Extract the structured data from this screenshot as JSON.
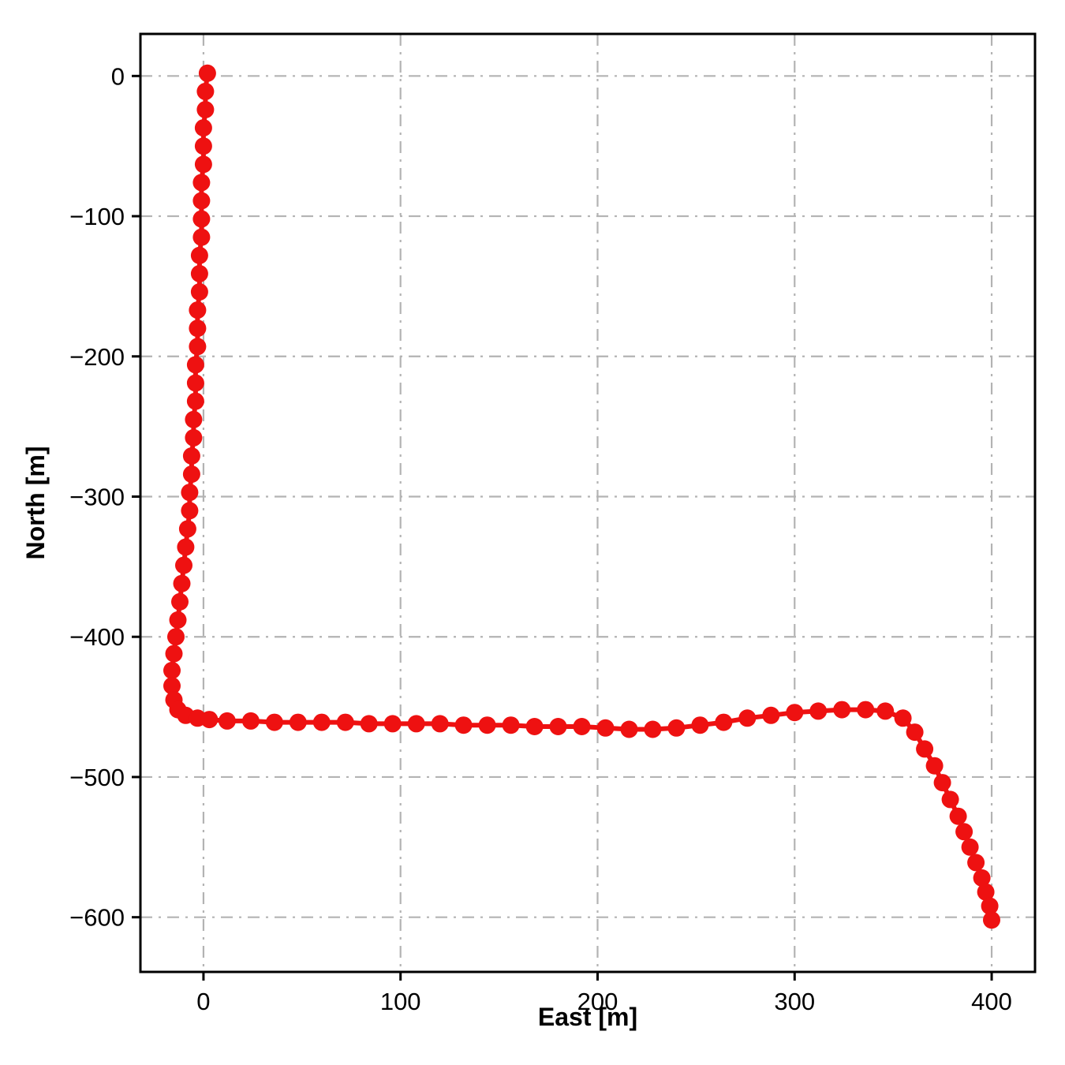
{
  "chart_data": {
    "type": "scatter",
    "title": "",
    "xlabel": "East [m]",
    "ylabel": "North [m]",
    "xlim": [
      -32,
      422
    ],
    "ylim": [
      -639,
      30
    ],
    "xticks": [
      0,
      100,
      200,
      300,
      400
    ],
    "yticks": [
      0,
      -100,
      -200,
      -300,
      -400,
      -500,
      -600
    ],
    "grid": "dash-dot",
    "legend": "none",
    "marker_color": "#ee1111",
    "grid_color": "#b3b3b3",
    "spine_color": "#000000",
    "points": [
      [
        2,
        2
      ],
      [
        1,
        -11
      ],
      [
        1,
        -24
      ],
      [
        0,
        -37
      ],
      [
        0,
        -50
      ],
      [
        0,
        -63
      ],
      [
        -1,
        -76
      ],
      [
        -1,
        -89
      ],
      [
        -1,
        -102
      ],
      [
        -1,
        -115
      ],
      [
        -2,
        -128
      ],
      [
        -2,
        -141
      ],
      [
        -2,
        -154
      ],
      [
        -3,
        -167
      ],
      [
        -3,
        -180
      ],
      [
        -3,
        -193
      ],
      [
        -4,
        -206
      ],
      [
        -4,
        -219
      ],
      [
        -4,
        -232
      ],
      [
        -5,
        -245
      ],
      [
        -5,
        -258
      ],
      [
        -6,
        -271
      ],
      [
        -6,
        -284
      ],
      [
        -7,
        -297
      ],
      [
        -7,
        -310
      ],
      [
        -8,
        -323
      ],
      [
        -9,
        -336
      ],
      [
        -10,
        -349
      ],
      [
        -11,
        -362
      ],
      [
        -12,
        -375
      ],
      [
        -13,
        -388
      ],
      [
        -14,
        -400
      ],
      [
        -15,
        -412
      ],
      [
        -16,
        -424
      ],
      [
        -16,
        -435
      ],
      [
        -15,
        -445
      ],
      [
        -13,
        -452
      ],
      [
        -9,
        -456
      ],
      [
        -3,
        -458
      ],
      [
        3,
        -459
      ],
      [
        12,
        -460
      ],
      [
        24,
        -460
      ],
      [
        36,
        -461
      ],
      [
        48,
        -461
      ],
      [
        60,
        -461
      ],
      [
        72,
        -461
      ],
      [
        84,
        -462
      ],
      [
        96,
        -462
      ],
      [
        108,
        -462
      ],
      [
        120,
        -462
      ],
      [
        132,
        -463
      ],
      [
        144,
        -463
      ],
      [
        156,
        -463
      ],
      [
        168,
        -464
      ],
      [
        180,
        -464
      ],
      [
        192,
        -464
      ],
      [
        204,
        -465
      ],
      [
        216,
        -466
      ],
      [
        228,
        -466
      ],
      [
        240,
        -465
      ],
      [
        252,
        -463
      ],
      [
        264,
        -461
      ],
      [
        276,
        -458
      ],
      [
        288,
        -456
      ],
      [
        300,
        -454
      ],
      [
        312,
        -453
      ],
      [
        324,
        -452
      ],
      [
        336,
        -452
      ],
      [
        346,
        -453
      ],
      [
        355,
        -458
      ],
      [
        361,
        -468
      ],
      [
        366,
        -480
      ],
      [
        371,
        -492
      ],
      [
        375,
        -504
      ],
      [
        379,
        -516
      ],
      [
        383,
        -528
      ],
      [
        386,
        -539
      ],
      [
        389,
        -550
      ],
      [
        392,
        -561
      ],
      [
        395,
        -572
      ],
      [
        397,
        -582
      ],
      [
        399,
        -592
      ],
      [
        400,
        -602
      ]
    ]
  }
}
